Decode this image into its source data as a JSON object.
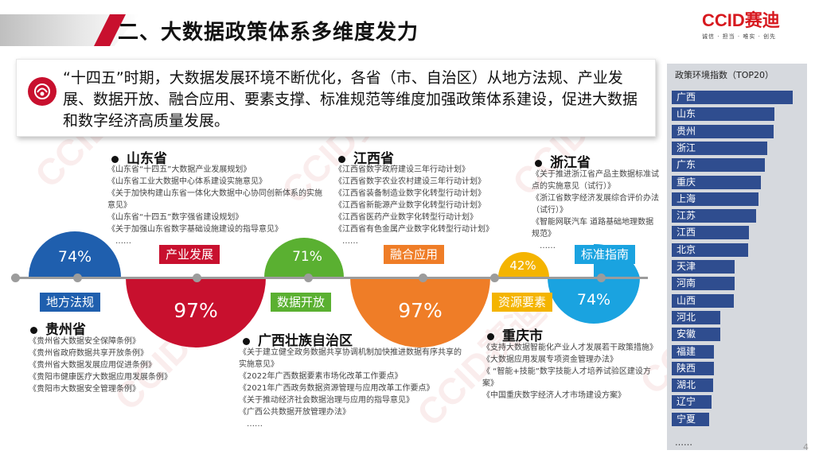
{
  "header": {
    "title": "二、大数据政策体系多维度发力",
    "logo_text": "CCID赛迪",
    "logo_slogan": "诚信 · 担当 · 唯实 · 创先"
  },
  "intro": {
    "text": "“十四五”时期，大数据发展环境不断优化，各省（市、自治区）从地方法规、产业发展、数据开放、融合应用、要素支撑、标准规范等维度加强政策体系建设，促进大数据和数字经济高质量发展。"
  },
  "provinces": {
    "shandong": {
      "name": "山东省",
      "docs": [
        "《山东省“十四五”大数据产业发展规划》",
        "《山东省工业大数据中心体系建设实施意见》",
        "《关于加快构建山东省一体化大数据中心协同创新体系的实施意见》",
        "《山东省“十四五”数字强省建设规划》",
        "《关于加强山东省数字基础设施建设的指导意见》",
        "……"
      ]
    },
    "jiangxi": {
      "name": "江西省",
      "docs": [
        "《江西省数字政府建设三年行动计划》",
        "《江西省数字农业农村建设三年行动计划》",
        "《江西省装备制造业数字化转型行动计划》",
        "《江西省新能源产业数字化转型行动计划》",
        "《江西省医药产业数字化转型行动计划》",
        "《江西省有色金属产业数字化转型行动计划》",
        "……"
      ]
    },
    "zhejiang": {
      "name": "浙江省",
      "docs": [
        "《关于推进浙江省产品主数据标准试点的实施意见（试行）》",
        "《浙江省数字经济发展综合评价办法（试行）》",
        "《智能网联汽车 道路基础地理数据规范》",
        "……"
      ]
    },
    "guizhou": {
      "name": "贵州省",
      "docs": [
        "《贵州省大数据安全保障条例》",
        "《贵州省政府数据共享开放条例》",
        "《贵州省大数据发展应用促进条例》",
        "《贵阳市健康医疗大数据应用发展条例》",
        "《贵阳市大数据安全管理条例》"
      ]
    },
    "guangxi": {
      "name": "广西壮族自治区",
      "docs": [
        "《关于建立健全政务数据共享协调机制加快推进数据有序共享的实施意见》",
        "《2022年广西数据要素市场化改革工作要点》",
        "《2021年广西政务数据资源管理与应用改革工作要点》",
        "《关于推动经济社会数据治理与应用的指导意见》",
        "《广西公共数据开放管理办法》",
        "……"
      ]
    },
    "chongqing": {
      "name": "重庆市",
      "docs": [
        "《支持大数据智能化产业人才发展若干政策措施》",
        "《大数据应用发展专项资金管理办法》",
        "《 “智能+技能”数字技能人才培养试验区建设方案》",
        "《中国重庆数字经济人才市场建设方案》"
      ]
    }
  },
  "dimensions": [
    {
      "label": "地方法规",
      "percent": "74%",
      "value": 74,
      "color": "#1f5fae"
    },
    {
      "label": "产业发展",
      "percent": "97%",
      "value": 97,
      "color": "#c8102e"
    },
    {
      "label": "数据开放",
      "percent": "71%",
      "value": 71,
      "color": "#5ab031"
    },
    {
      "label": "融合应用",
      "percent": "97%",
      "value": 97,
      "color": "#ef7d27"
    },
    {
      "label": "资源要素",
      "percent": "42%",
      "value": 42,
      "color": "#f4b400"
    },
    {
      "label": "标准指南",
      "percent": "74%",
      "value": 74,
      "color": "#1aa3e0"
    }
  ],
  "ranking": {
    "title": "政策环境指数（TOP20）",
    "bar_color": "#2f4d8f",
    "items": [
      {
        "name": "广西",
        "score": 100
      },
      {
        "name": "山东",
        "score": 85
      },
      {
        "name": "贵州",
        "score": 84
      },
      {
        "name": "浙江",
        "score": 79
      },
      {
        "name": "广东",
        "score": 77
      },
      {
        "name": "重庆",
        "score": 74
      },
      {
        "name": "上海",
        "score": 72
      },
      {
        "name": "江苏",
        "score": 70
      },
      {
        "name": "江西",
        "score": 64
      },
      {
        "name": "北京",
        "score": 63
      },
      {
        "name": "天津",
        "score": 52
      },
      {
        "name": "河南",
        "score": 52
      },
      {
        "name": "山西",
        "score": 51
      },
      {
        "name": "河北",
        "score": 40
      },
      {
        "name": "安徽",
        "score": 40
      },
      {
        "name": "福建",
        "score": 35
      },
      {
        "name": "陕西",
        "score": 35
      },
      {
        "name": "湖北",
        "score": 34
      },
      {
        "name": "辽宁",
        "score": 33
      },
      {
        "name": "宁夏",
        "score": 31
      }
    ],
    "more": "……"
  },
  "page_number": "4"
}
